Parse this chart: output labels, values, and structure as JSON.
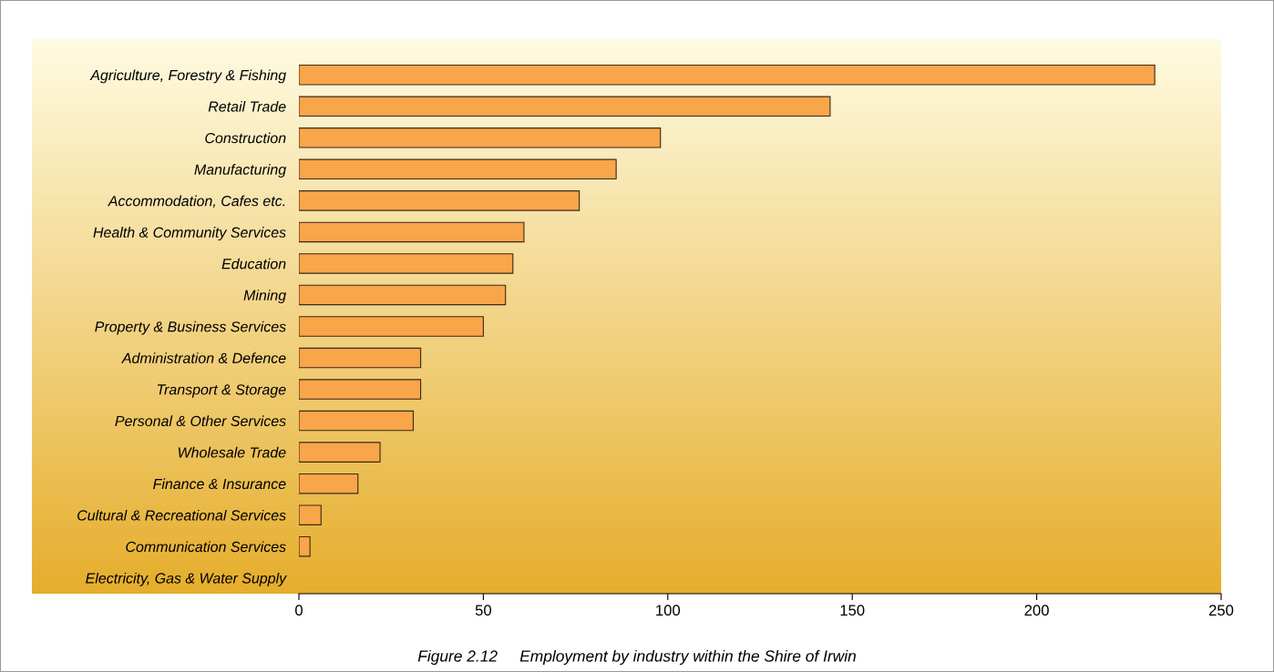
{
  "chart_data": {
    "type": "bar",
    "orientation": "horizontal",
    "categories": [
      "Agriculture, Forestry & Fishing",
      "Retail Trade",
      "Construction",
      "Manufacturing",
      "Accommodation, Cafes etc.",
      "Health & Community Services",
      "Education",
      "Mining",
      "Property & Business Services",
      "Administration & Defence",
      "Transport & Storage",
      "Personal & Other Services",
      "Wholesale Trade",
      "Finance & Insurance",
      "Cultural & Recreational Services",
      "Communication Services",
      "Electricity, Gas & Water Supply"
    ],
    "values": [
      232,
      144,
      98,
      86,
      76,
      61,
      58,
      56,
      50,
      33,
      33,
      31,
      22,
      16,
      6,
      3,
      0
    ],
    "color": "#f9a54a",
    "xlim": [
      0,
      250
    ],
    "xticks": [
      0,
      50,
      100,
      150,
      200,
      250
    ],
    "grid": false,
    "legend": false,
    "annotations": [
      "Figure 2.12     Employment by industry within the Shire of Irwin"
    ]
  }
}
